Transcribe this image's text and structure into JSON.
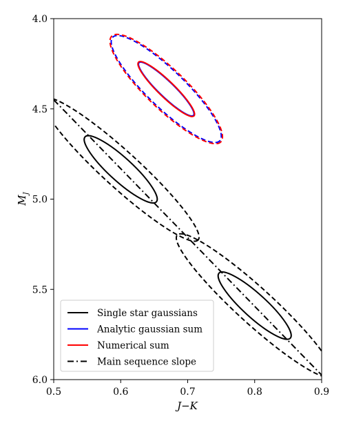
{
  "chart_data": {
    "type": "line",
    "title": "",
    "xlabel": "J−K",
    "ylabel": "M",
    "ylabel_sub": "J",
    "xlim": [
      0.5,
      0.9
    ],
    "ylim": [
      6.0,
      4.0
    ],
    "y_inverted": true,
    "xticks": [
      0.5,
      0.6,
      0.7,
      0.8,
      0.9
    ],
    "xtick_labels": [
      "0.5",
      "0.6",
      "0.7",
      "0.8",
      "0.9"
    ],
    "yticks": [
      4.0,
      4.5,
      5.0,
      5.5,
      6.0
    ],
    "ytick_labels": [
      "4.0",
      "4.5",
      "5.0",
      "5.5",
      "6.0"
    ],
    "grid": false,
    "legend_position": "lower-left",
    "legend": [
      {
        "label": "Single star gaussians",
        "color": "#000000",
        "style": "solid"
      },
      {
        "label": "Analytic gaussian sum",
        "color": "#0000ff",
        "style": "solid"
      },
      {
        "label": "Numerical sum",
        "color": "#ff0000",
        "style": "solid"
      },
      {
        "label": "Main sequence slope",
        "color": "#000000",
        "style": "dashdot"
      }
    ],
    "series": [
      {
        "group": "Single star gaussians",
        "kind": "ellipse-inner",
        "center": [
          0.6,
          4.835
        ],
        "color": "#000000",
        "style": "solid"
      },
      {
        "group": "Single star gaussians",
        "kind": "ellipse-outer",
        "center": [
          0.6,
          4.835
        ],
        "color": "#000000",
        "style": "dashed"
      },
      {
        "group": "Single star gaussians",
        "kind": "ellipse-inner",
        "center": [
          0.8,
          5.59
        ],
        "color": "#000000",
        "style": "solid"
      },
      {
        "group": "Single star gaussians",
        "kind": "ellipse-outer",
        "center": [
          0.8,
          5.59
        ],
        "color": "#000000",
        "style": "dashed"
      },
      {
        "group": "Analytic gaussian sum",
        "kind": "ellipse-inner",
        "center": [
          0.668,
          4.39
        ],
        "color": "#0000ff",
        "style": "solid"
      },
      {
        "group": "Analytic gaussian sum",
        "kind": "ellipse-outer",
        "center": [
          0.668,
          4.39
        ],
        "color": "#0000ff",
        "style": "dashed"
      },
      {
        "group": "Numerical sum",
        "kind": "ellipse-inner",
        "center": [
          0.668,
          4.39
        ],
        "color": "#ff0000",
        "style": "solid"
      },
      {
        "group": "Numerical sum",
        "kind": "ellipse-outer",
        "center": [
          0.668,
          4.39
        ],
        "color": "#ff0000",
        "style": "dashed"
      },
      {
        "group": "Main sequence slope",
        "kind": "line",
        "x": [
          0.5,
          0.9
        ],
        "y": [
          4.45,
          5.975
        ],
        "color": "#000000",
        "style": "dashdot"
      }
    ]
  }
}
